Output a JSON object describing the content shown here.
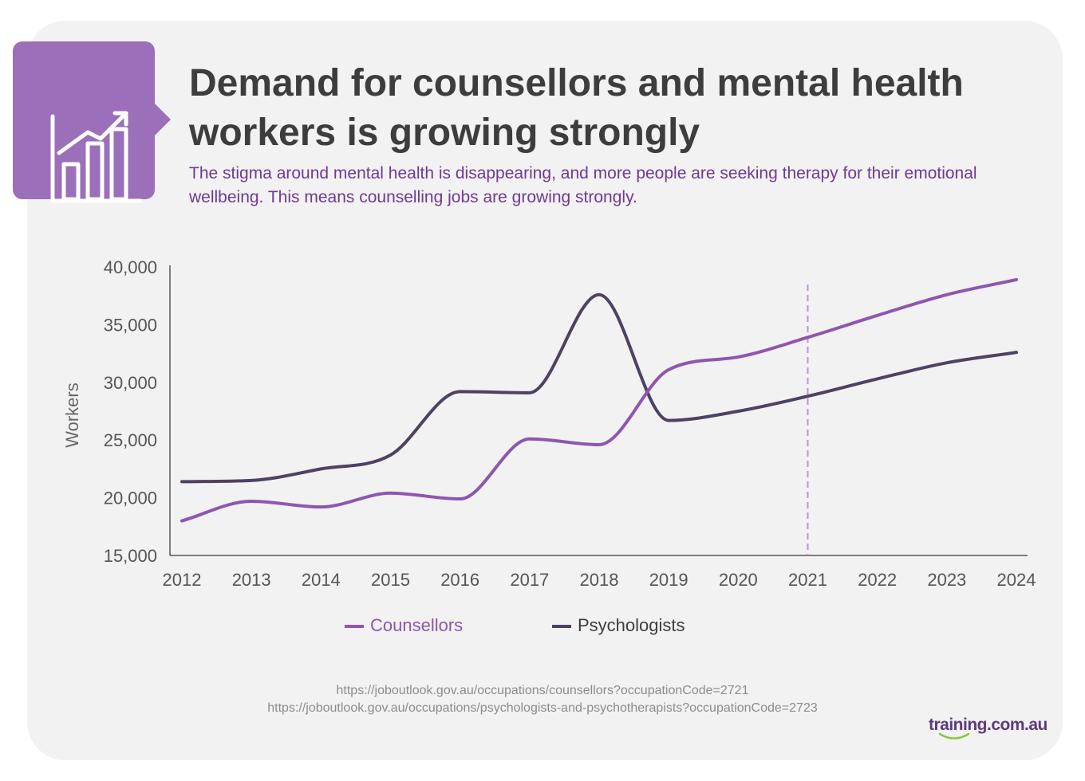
{
  "title": "Demand for counsellors and mental health workers is growing strongly",
  "subtitle": "The stigma around mental health is disappearing, and more people are seeking therapy for their emotional wellbeing. This means counselling jobs are growing strongly.",
  "badge_icon": "growth-bar-chart-icon",
  "colors": {
    "counsellors": "#9055b0",
    "psychologists": "#4e4163",
    "accent": "#9b6fb9",
    "marker_line": "#b994d4"
  },
  "chart_data": {
    "type": "line",
    "ylabel": "Workers",
    "xlabel": "",
    "x": [
      2012,
      2013,
      2014,
      2015,
      2016,
      2017,
      2018,
      2019,
      2020,
      2021,
      2022,
      2023,
      2024
    ],
    "x_tick_labels": [
      "2012",
      "2013",
      "2014",
      "2015",
      "2016",
      "2017",
      "2018",
      "2019",
      "2020",
      "2021",
      "2022",
      "2023",
      "2024"
    ],
    "ylim": [
      15000,
      40000
    ],
    "y_tick_labels": [
      "15,000",
      "20,000",
      "25,000",
      "30,000",
      "35,000",
      "40,000"
    ],
    "y_ticks": [
      15000,
      20000,
      25000,
      30000,
      35000,
      40000
    ],
    "vertical_marker_x": 2021,
    "grid": false,
    "legend_position": "bottom",
    "series": [
      {
        "name": "Counsellors",
        "values": [
          18000,
          19700,
          19200,
          20400,
          19900,
          25100,
          24600,
          31100,
          32200,
          33900,
          35800,
          37600,
          38900
        ]
      },
      {
        "name": "Psychologists",
        "values": [
          21400,
          21500,
          22500,
          23700,
          29200,
          29100,
          37600,
          26700,
          27500,
          28800,
          30300,
          31700,
          32600
        ]
      }
    ]
  },
  "sources": [
    "https://joboutlook.gov.au/occupations/counsellors?occupationCode=2721",
    "https://joboutlook.gov.au/occupations/psychologists-and-psychotherapists?occupationCode=2723"
  ],
  "logo_text": "training.com.au"
}
